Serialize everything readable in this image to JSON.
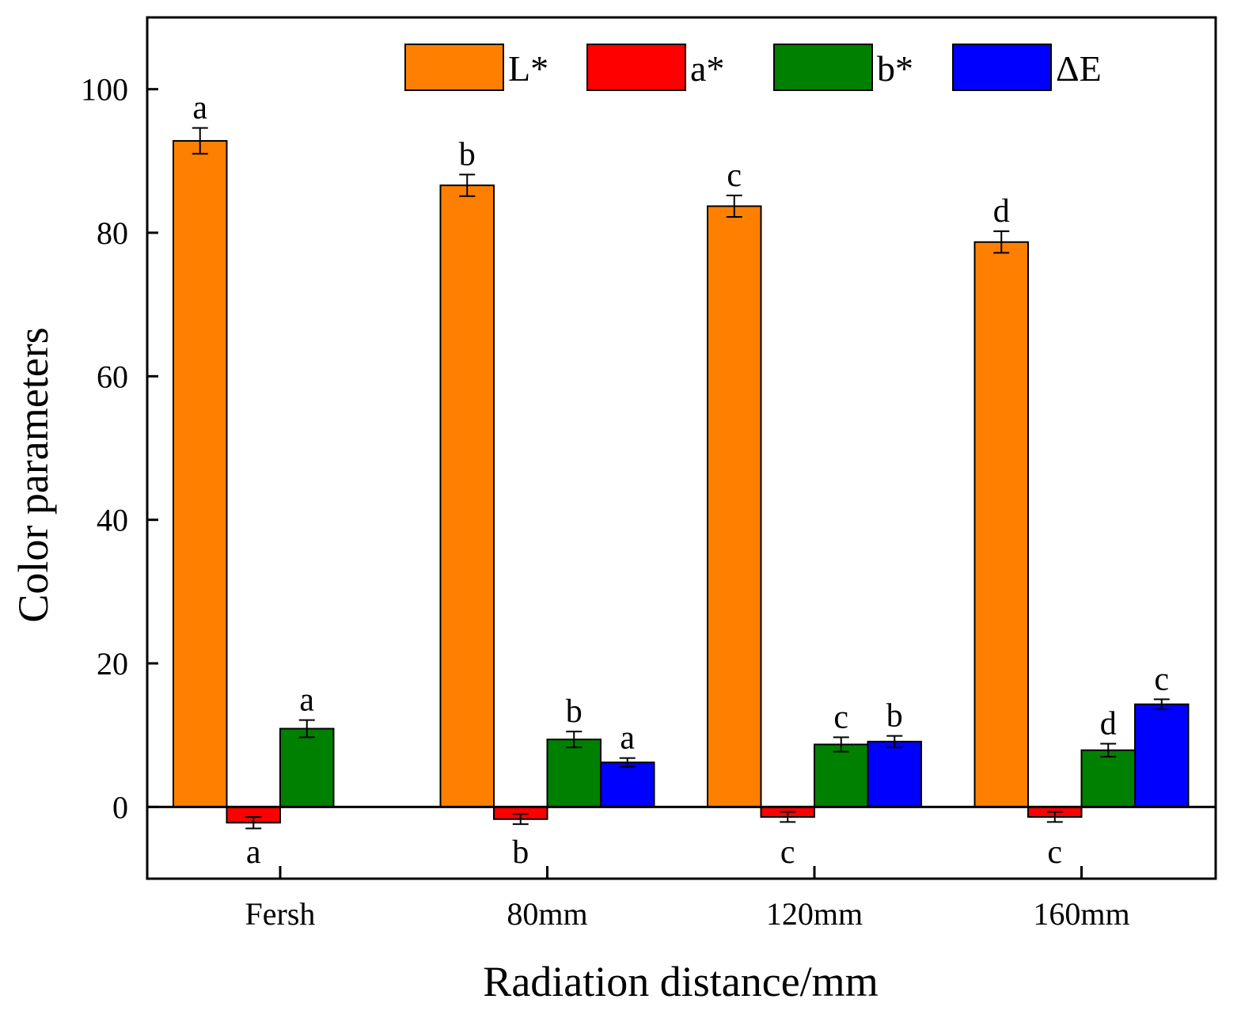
{
  "chart_data": {
    "type": "bar",
    "title": "",
    "xlabel": "Radiation distance/mm",
    "ylabel": "Color parameters",
    "categories": [
      "Fersh",
      "80mm",
      "120mm",
      "160mm"
    ],
    "ylim": [
      -10,
      110
    ],
    "yticks": [
      0,
      20,
      40,
      60,
      80,
      100
    ],
    "legend_position": "top-right",
    "series": [
      {
        "name": "L*",
        "color": "#ff8000",
        "values": [
          92.8,
          86.6,
          83.7,
          78.7
        ],
        "errors": [
          1.8,
          1.5,
          1.5,
          1.5
        ],
        "letters": [
          "a",
          "b",
          "c",
          "d"
        ]
      },
      {
        "name": "a*",
        "color": "#ff0000",
        "values": [
          -2.2,
          -1.7,
          -1.4,
          -1.4
        ],
        "errors": [
          0.8,
          0.7,
          0.7,
          0.7
        ],
        "letters": [
          "a",
          "b",
          "c",
          "c"
        ]
      },
      {
        "name": "b*",
        "color": "#008000",
        "values": [
          10.9,
          9.4,
          8.7,
          7.9
        ],
        "errors": [
          1.2,
          1.1,
          1.0,
          0.9
        ],
        "letters": [
          "a",
          "b",
          "c",
          "d"
        ]
      },
      {
        "name": "ΔE",
        "color": "#0000ff",
        "values": [
          null,
          6.2,
          9.1,
          14.3
        ],
        "errors": [
          null,
          0.6,
          0.8,
          0.7
        ],
        "letters": [
          null,
          "a",
          "b",
          "c"
        ]
      }
    ]
  }
}
